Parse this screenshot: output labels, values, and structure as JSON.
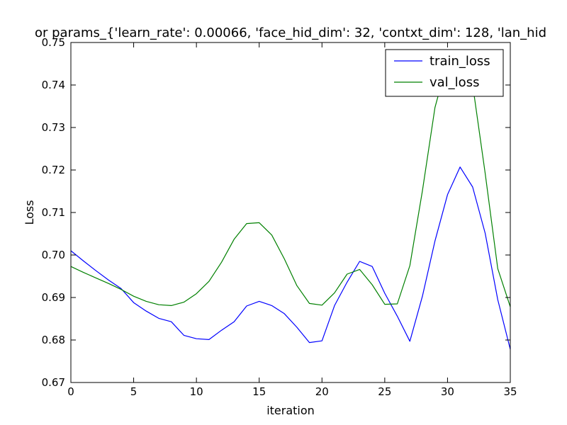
{
  "chart_data": {
    "type": "line",
    "title": "or params_{'learn_rate': 0.00066, 'face_hid_dim': 32, 'contxt_dim': 128, 'lan_hid",
    "xlabel": "iteration",
    "ylabel": "Loss",
    "xlim": [
      0,
      35
    ],
    "ylim": [
      0.67,
      0.75
    ],
    "xticks": [
      0,
      5,
      10,
      15,
      20,
      25,
      30,
      35
    ],
    "xtick_labels": [
      "0",
      "5",
      "10",
      "15",
      "20",
      "25",
      "30",
      "35"
    ],
    "yticks": [
      0.67,
      0.68,
      0.69,
      0.7,
      0.71,
      0.72,
      0.73,
      0.74,
      0.75
    ],
    "ytick_labels": [
      "0.67",
      "0.68",
      "0.69",
      "0.70",
      "0.71",
      "0.72",
      "0.73",
      "0.74",
      "0.75"
    ],
    "grid": false,
    "legend_position": "top-right",
    "x": [
      0,
      1,
      2,
      3,
      4,
      5,
      6,
      7,
      8,
      9,
      10,
      11,
      12,
      13,
      14,
      15,
      16,
      17,
      18,
      19,
      20,
      21,
      22,
      23,
      24,
      25,
      26,
      27,
      28,
      29,
      30,
      31,
      32,
      33,
      34,
      35
    ],
    "series": [
      {
        "name": "train_loss",
        "color": "#0000ff",
        "values": [
          0.701,
          0.6986,
          0.6963,
          0.6941,
          0.6921,
          0.6888,
          0.6868,
          0.6851,
          0.6843,
          0.6811,
          0.6803,
          0.6801,
          0.6823,
          0.6843,
          0.688,
          0.6891,
          0.6881,
          0.6862,
          0.683,
          0.6794,
          0.6798,
          0.6881,
          0.6936,
          0.6985,
          0.6973,
          0.691,
          0.6856,
          0.6797,
          0.6903,
          0.7033,
          0.7142,
          0.7207,
          0.716,
          0.7051,
          0.6895,
          0.6778
        ]
      },
      {
        "name": "val_loss",
        "color": "#008000",
        "values": [
          0.6973,
          0.6959,
          0.6946,
          0.6933,
          0.6919,
          0.6903,
          0.6891,
          0.6883,
          0.6881,
          0.6889,
          0.6909,
          0.6938,
          0.6983,
          0.7037,
          0.7074,
          0.7076,
          0.7047,
          0.6991,
          0.6928,
          0.6886,
          0.6882,
          0.6911,
          0.6955,
          0.6966,
          0.693,
          0.6884,
          0.6885,
          0.6975,
          0.7151,
          0.7347,
          0.7456,
          0.7478,
          0.7401,
          0.7192,
          0.6968,
          0.6878
        ]
      }
    ]
  }
}
